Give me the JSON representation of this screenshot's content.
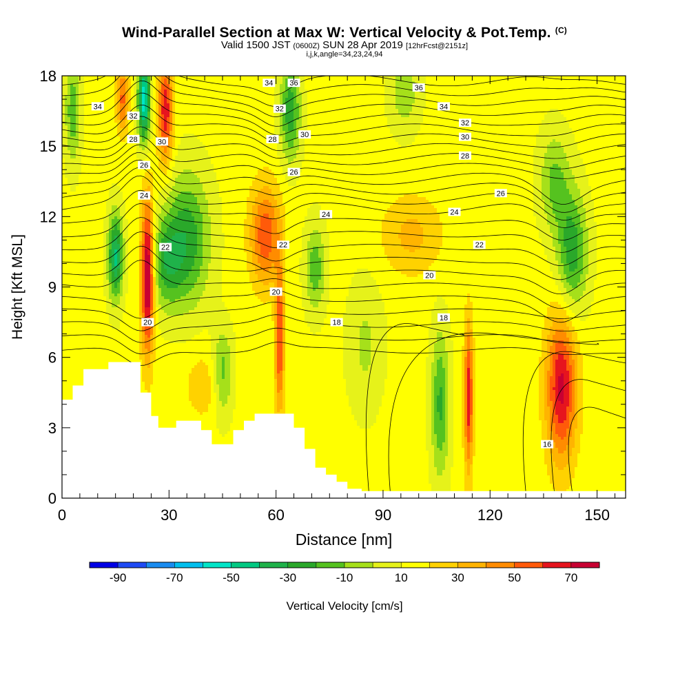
{
  "header": {
    "title": "Wind-Parallel Section at Max W: Vertical Velocity & Pot.Temp.",
    "copyright_mark": "(C)",
    "subtitle_valid": "Valid 1500 JST",
    "subtitle_utc": "(0600Z)",
    "subtitle_date": "SUN 28 Apr 2019",
    "subtitle_fcst": "[12hrFcst@2151z]",
    "subtitle_grid": "i,j,k,angle=34,23,24,94"
  },
  "chart_data": {
    "type": "heatmap",
    "xlabel": "Distance [nm]",
    "ylabel": "Height [Kft MSL]",
    "xlim": [
      0,
      158
    ],
    "ylim": [
      0,
      18
    ],
    "xticks": [
      0,
      30,
      60,
      90,
      120,
      150
    ],
    "yticks": [
      0,
      3,
      6,
      9,
      12,
      15,
      18
    ],
    "colorbar": {
      "label": "Vertical Velocity [cm/s]",
      "tick_labels": [
        "-90",
        "-70",
        "-50",
        "-30",
        "-10",
        "10",
        "30",
        "50",
        "70"
      ],
      "tick_values": [
        -90,
        -70,
        -50,
        -30,
        -10,
        10,
        30,
        50,
        70
      ],
      "boundaries": [
        -100,
        -90,
        -80,
        -70,
        -60,
        -50,
        -40,
        -30,
        -20,
        -10,
        0,
        10,
        20,
        30,
        40,
        50,
        60,
        70,
        80
      ],
      "colors": [
        "#0000e6",
        "#1f4bf5",
        "#1a8cf0",
        "#00bfee",
        "#00e5c8",
        "#00c982",
        "#1fb24a",
        "#2aa82a",
        "#55c21f",
        "#a6e01a",
        "#e6f21a",
        "#ffff00",
        "#ffd200",
        "#ffb400",
        "#ff8c00",
        "#ff5a0a",
        "#e6141e",
        "#c80032",
        "#8c0a5a",
        "#5a1482"
      ]
    },
    "terrain_kft": [
      [
        0,
        4.2
      ],
      [
        3,
        4.2
      ],
      [
        3,
        4.8
      ],
      [
        6,
        4.8
      ],
      [
        6,
        5.5
      ],
      [
        13,
        5.5
      ],
      [
        13,
        5.8
      ],
      [
        22,
        5.8
      ],
      [
        22,
        4.5
      ],
      [
        25,
        4.5
      ],
      [
        25,
        3.5
      ],
      [
        27,
        3.5
      ],
      [
        27,
        3.0
      ],
      [
        32,
        3.0
      ],
      [
        32,
        3.3
      ],
      [
        39,
        3.3
      ],
      [
        39,
        2.9
      ],
      [
        42,
        2.9
      ],
      [
        42,
        2.3
      ],
      [
        48,
        2.3
      ],
      [
        48,
        2.9
      ],
      [
        51,
        2.9
      ],
      [
        51,
        3.3
      ],
      [
        54,
        3.3
      ],
      [
        54,
        3.6
      ],
      [
        65,
        3.6
      ],
      [
        65,
        3.0
      ],
      [
        68,
        3.0
      ],
      [
        68,
        2.1
      ],
      [
        71,
        2.1
      ],
      [
        71,
        1.3
      ],
      [
        74,
        1.3
      ],
      [
        74,
        1.0
      ],
      [
        77,
        1.0
      ],
      [
        77,
        0.7
      ],
      [
        80,
        0.7
      ],
      [
        80,
        0.4
      ],
      [
        84,
        0.4
      ],
      [
        84,
        0.3
      ],
      [
        158,
        0.3
      ]
    ],
    "vertical_velocity_features": [
      {
        "x": 24,
        "y": 9.5,
        "w_cms": 75,
        "sx": 1.3,
        "sy": 2.3
      },
      {
        "x": 29,
        "y": 16.5,
        "w_cms": 55,
        "sx": 1.5,
        "sy": 1.6
      },
      {
        "x": 17,
        "y": 17.0,
        "w_cms": 40,
        "sx": 1.2,
        "sy": 1.0
      },
      {
        "x": 23,
        "y": 17.0,
        "w_cms": -70,
        "sx": 1.2,
        "sy": 1.3
      },
      {
        "x": 15,
        "y": 10.3,
        "w_cms": -55,
        "sx": 1.5,
        "sy": 1.3
      },
      {
        "x": 3,
        "y": 16.5,
        "w_cms": -30,
        "sx": 1.5,
        "sy": 1.6
      },
      {
        "x": 35,
        "y": 11.0,
        "w_cms": -40,
        "sx": 4.5,
        "sy": 2.0
      },
      {
        "x": 29,
        "y": 10.0,
        "w_cms": -30,
        "sx": 3.0,
        "sy": 1.3
      },
      {
        "x": 40,
        "y": 4.8,
        "w_cms": 15,
        "sx": 4.0,
        "sy": 1.0
      },
      {
        "x": 45,
        "y": 5.3,
        "w_cms": -30,
        "sx": 2.0,
        "sy": 1.3
      },
      {
        "x": 57,
        "y": 11.2,
        "w_cms": 45,
        "sx": 3.0,
        "sy": 1.5
      },
      {
        "x": 61,
        "y": 6.8,
        "w_cms": 50,
        "sx": 0.9,
        "sy": 2.2
      },
      {
        "x": 64,
        "y": 16.5,
        "w_cms": -40,
        "sx": 2.0,
        "sy": 1.5
      },
      {
        "x": 71,
        "y": 9.8,
        "w_cms": -30,
        "sx": 2.0,
        "sy": 1.3
      },
      {
        "x": 85,
        "y": 6.5,
        "w_cms": -15,
        "sx": 3.5,
        "sy": 2.0
      },
      {
        "x": 106,
        "y": 4.0,
        "w_cms": -35,
        "sx": 1.8,
        "sy": 2.2
      },
      {
        "x": 114,
        "y": 4.3,
        "w_cms": 55,
        "sx": 0.9,
        "sy": 2.2
      },
      {
        "x": 140,
        "y": 4.7,
        "w_cms": 60,
        "sx": 3.0,
        "sy": 2.2
      },
      {
        "x": 143,
        "y": 10.5,
        "w_cms": -40,
        "sx": 3.0,
        "sy": 1.8
      },
      {
        "x": 138,
        "y": 13.5,
        "w_cms": -25,
        "sx": 3.0,
        "sy": 1.5
      },
      {
        "x": 98,
        "y": 11.2,
        "w_cms": 20,
        "sx": 6.0,
        "sy": 1.2
      },
      {
        "x": 96,
        "y": 17.3,
        "w_cms": -20,
        "sx": 3.0,
        "sy": 1.2
      }
    ],
    "theta_contour_labels": [
      {
        "text": "34",
        "x": 10,
        "y": 16.7
      },
      {
        "text": "32",
        "x": 20,
        "y": 16.3
      },
      {
        "text": "28",
        "x": 20,
        "y": 15.3
      },
      {
        "text": "30",
        "x": 28,
        "y": 15.2
      },
      {
        "text": "26",
        "x": 23,
        "y": 14.2
      },
      {
        "text": "24",
        "x": 23,
        "y": 12.9
      },
      {
        "text": "22",
        "x": 29,
        "y": 10.7
      },
      {
        "text": "20",
        "x": 24,
        "y": 7.5
      },
      {
        "text": "34",
        "x": 58,
        "y": 17.7
      },
      {
        "text": "36",
        "x": 65,
        "y": 17.7
      },
      {
        "text": "32",
        "x": 61,
        "y": 16.6
      },
      {
        "text": "28",
        "x": 59,
        "y": 15.3
      },
      {
        "text": "30",
        "x": 68,
        "y": 15.5
      },
      {
        "text": "26",
        "x": 65,
        "y": 13.9
      },
      {
        "text": "24",
        "x": 74,
        "y": 12.1
      },
      {
        "text": "22",
        "x": 62,
        "y": 10.8
      },
      {
        "text": "20",
        "x": 60,
        "y": 8.8
      },
      {
        "text": "18",
        "x": 77,
        "y": 7.5
      },
      {
        "text": "36",
        "x": 100,
        "y": 17.5
      },
      {
        "text": "34",
        "x": 107,
        "y": 16.7
      },
      {
        "text": "32",
        "x": 113,
        "y": 16.0
      },
      {
        "text": "30",
        "x": 113,
        "y": 15.4
      },
      {
        "text": "28",
        "x": 113,
        "y": 14.6
      },
      {
        "text": "26",
        "x": 123,
        "y": 13.0
      },
      {
        "text": "24",
        "x": 110,
        "y": 12.2
      },
      {
        "text": "22",
        "x": 117,
        "y": 10.8
      },
      {
        "text": "20",
        "x": 103,
        "y": 9.5
      },
      {
        "text": "18",
        "x": 107,
        "y": 7.7
      },
      {
        "text": "16",
        "x": 136,
        "y": 2.3
      }
    ]
  }
}
